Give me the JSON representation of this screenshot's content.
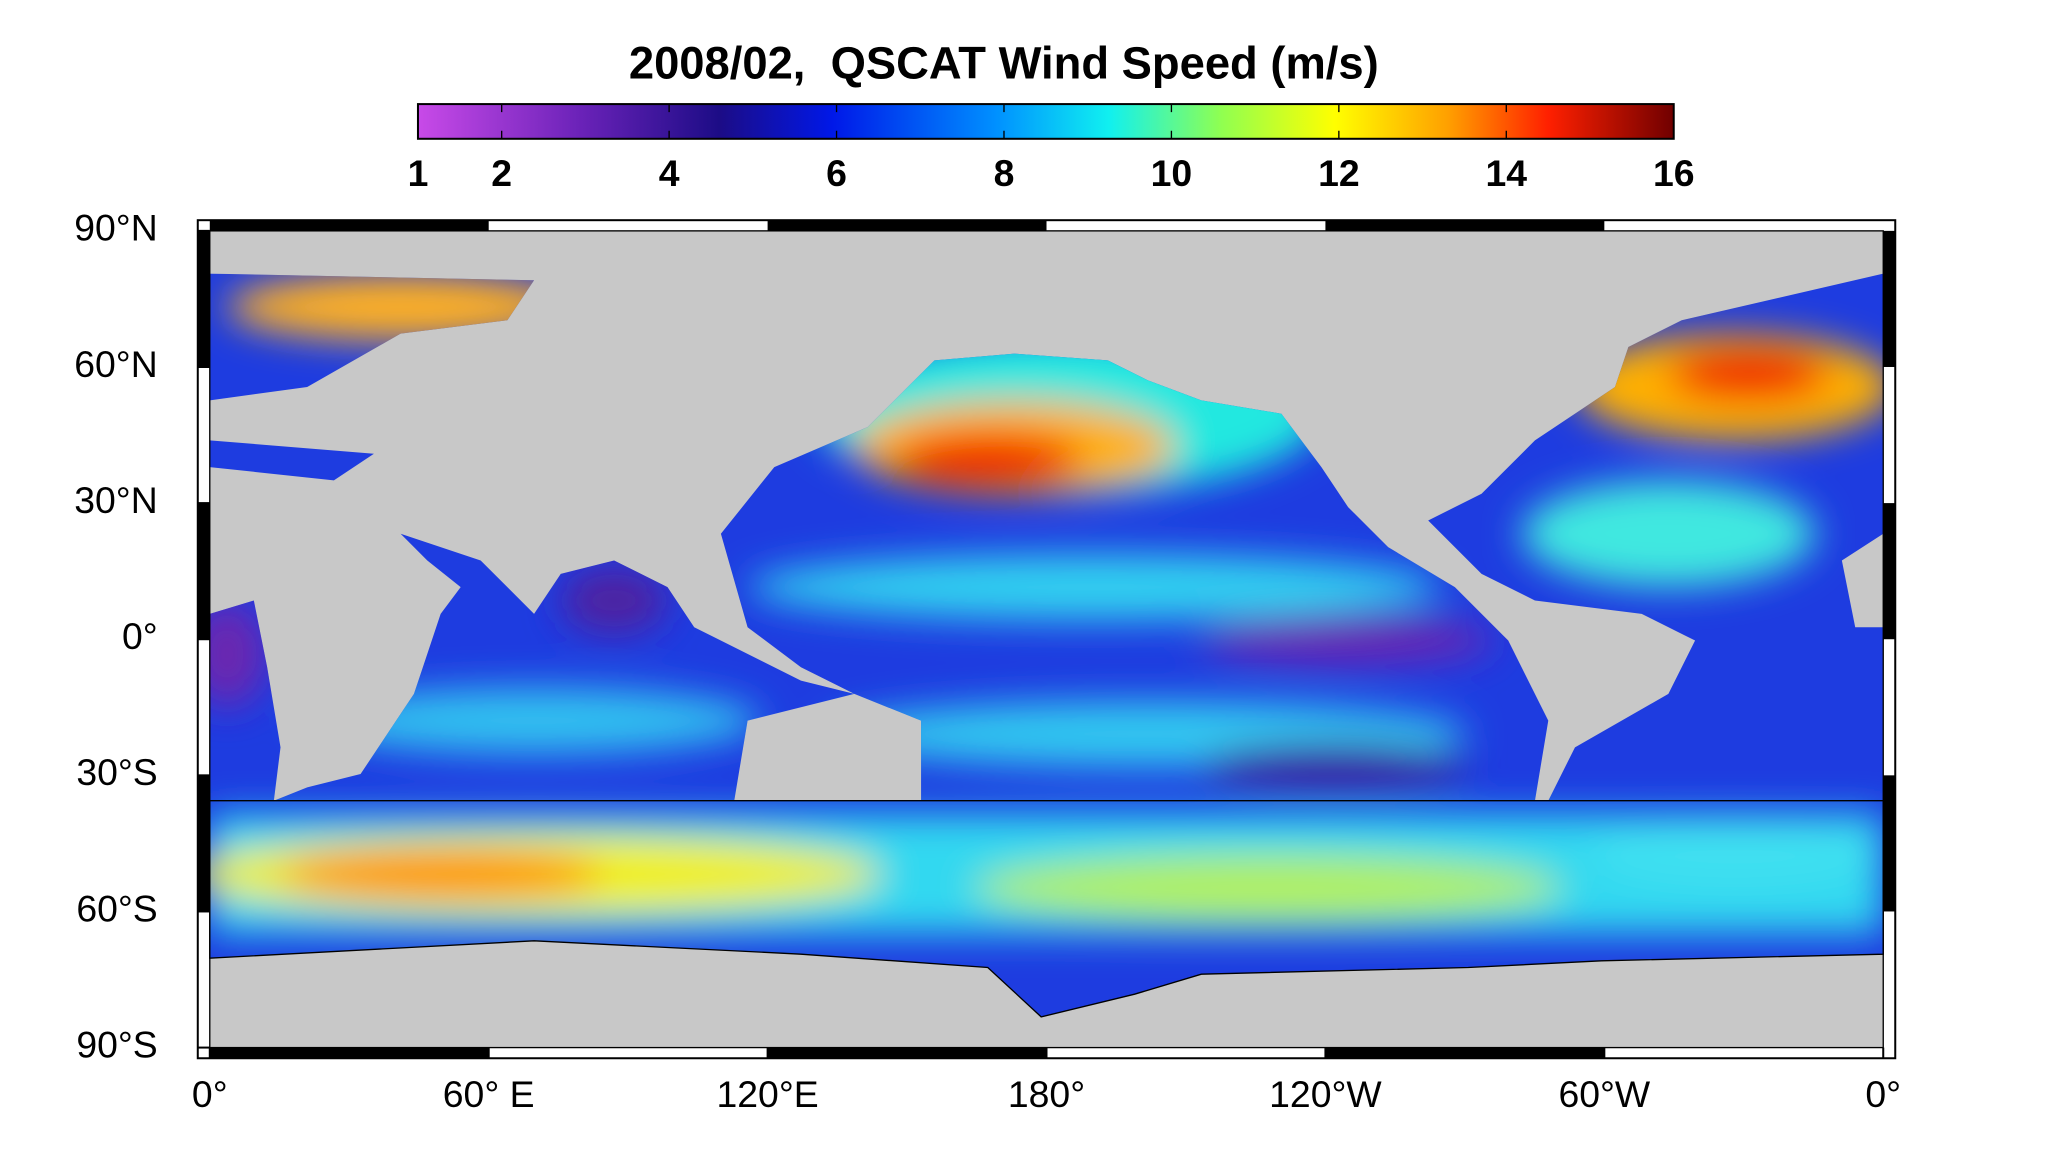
{
  "title": "2008/02,  QSCAT Wind Speed (m/s)",
  "colorbar": {
    "lim": [
      1,
      16
    ],
    "ticks": [
      1,
      2,
      4,
      6,
      8,
      10,
      12,
      14,
      16
    ]
  },
  "map": {
    "lonlim": [
      0,
      360
    ],
    "latlim": [
      -90,
      90
    ],
    "lon_ticks": [
      {
        "value": 0,
        "label": "0°"
      },
      {
        "value": 60,
        "label": "60° E"
      },
      {
        "value": 120,
        "label": "120°E"
      },
      {
        "value": 180,
        "label": "180°"
      },
      {
        "value": 240,
        "label": "120°W"
      },
      {
        "value": 300,
        "label": "60°W"
      },
      {
        "value": 360,
        "label": "0°"
      }
    ],
    "lat_ticks": [
      {
        "value": 90,
        "label": "90°N"
      },
      {
        "value": 60,
        "label": "60°N"
      },
      {
        "value": 30,
        "label": "30°N"
      },
      {
        "value": 0,
        "label": "0°"
      },
      {
        "value": -30,
        "label": "30°S"
      },
      {
        "value": -60,
        "label": "60°S"
      },
      {
        "value": -90,
        "label": "90°S"
      }
    ]
  }
}
